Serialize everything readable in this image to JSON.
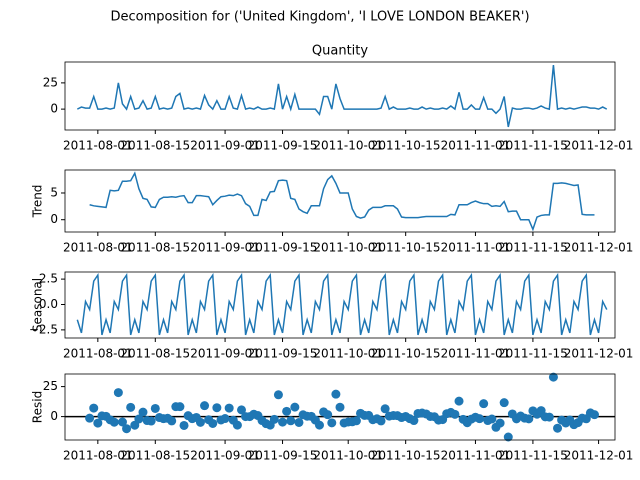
{
  "chart_data": {
    "type": "line",
    "title": "Decomposition for ('United Kingdom', 'I LOVE LONDON BEAKER')",
    "x": [
      "2011-07-27",
      "2011-07-28",
      "2011-07-29",
      "2011-07-30",
      "2011-07-31",
      "2011-08-01",
      "2011-08-02",
      "2011-08-03",
      "2011-08-04",
      "2011-08-05",
      "2011-08-06",
      "2011-08-07",
      "2011-08-08",
      "2011-08-09",
      "2011-08-10",
      "2011-08-11",
      "2011-08-12",
      "2011-08-13",
      "2011-08-14",
      "2011-08-15",
      "2011-08-16",
      "2011-08-17",
      "2011-08-18",
      "2011-08-19",
      "2011-08-20",
      "2011-08-21",
      "2011-08-22",
      "2011-08-23",
      "2011-08-24",
      "2011-08-25",
      "2011-08-26",
      "2011-08-27",
      "2011-08-28",
      "2011-08-29",
      "2011-08-30",
      "2011-08-31",
      "2011-09-01",
      "2011-09-02",
      "2011-09-03",
      "2011-09-04",
      "2011-09-05",
      "2011-09-06",
      "2011-09-07",
      "2011-09-08",
      "2011-09-09",
      "2011-09-10",
      "2011-09-11",
      "2011-09-12",
      "2011-09-13",
      "2011-09-14",
      "2011-09-15",
      "2011-09-16",
      "2011-09-17",
      "2011-09-18",
      "2011-09-19",
      "2011-09-20",
      "2011-09-21",
      "2011-09-22",
      "2011-09-23",
      "2011-09-24",
      "2011-09-25",
      "2011-09-26",
      "2011-09-27",
      "2011-09-28",
      "2011-09-29",
      "2011-09-30",
      "2011-10-01",
      "2011-10-02",
      "2011-10-03",
      "2011-10-04",
      "2011-10-05",
      "2011-10-06",
      "2011-10-07",
      "2011-10-08",
      "2011-10-09",
      "2011-10-10",
      "2011-10-11",
      "2011-10-12",
      "2011-10-13",
      "2011-10-14",
      "2011-10-15",
      "2011-10-16",
      "2011-10-17",
      "2011-10-18",
      "2011-10-19",
      "2011-10-20",
      "2011-10-21",
      "2011-10-22",
      "2011-10-23",
      "2011-10-24",
      "2011-10-25",
      "2011-10-26",
      "2011-10-27",
      "2011-10-28",
      "2011-10-29",
      "2011-10-30",
      "2011-10-31",
      "2011-11-01",
      "2011-11-02",
      "2011-11-03",
      "2011-11-04",
      "2011-11-05",
      "2011-11-06",
      "2011-11-07",
      "2011-11-08",
      "2011-11-09",
      "2011-11-10",
      "2011-11-11",
      "2011-11-12",
      "2011-11-13",
      "2011-11-14",
      "2011-11-15",
      "2011-11-16",
      "2011-11-17",
      "2011-11-18",
      "2011-11-19",
      "2011-11-20",
      "2011-11-21",
      "2011-11-22",
      "2011-11-23",
      "2011-11-24",
      "2011-11-25",
      "2011-11-26",
      "2011-11-27",
      "2011-11-28",
      "2011-11-29",
      "2011-11-30",
      "2011-12-01",
      "2011-12-02",
      "2011-12-03"
    ],
    "xlim": [
      "2011-07-24",
      "2011-12-05"
    ],
    "xticks": [
      "2011-08-01",
      "2011-08-15",
      "2011-09-01",
      "2011-09-15",
      "2011-10-01",
      "2011-10-15",
      "2011-11-01",
      "2011-11-15",
      "2011-12-01"
    ],
    "panels": [
      {
        "type": "line",
        "title": "Quantity",
        "color": "#1f77b4",
        "ylim": [
          -19.9,
          44.9
        ],
        "yticks": [
          0,
          25
        ],
        "values": [
          0,
          2,
          1,
          1,
          12,
          0,
          0,
          1,
          0,
          1,
          25,
          5,
          0,
          12,
          0,
          1,
          8,
          0,
          1,
          12,
          0,
          1,
          0,
          1,
          12,
          15,
          0,
          1,
          0,
          1,
          0,
          13,
          4,
          0,
          8,
          0,
          0,
          12,
          1,
          0,
          13,
          0,
          1,
          0,
          2,
          0,
          0,
          1,
          0,
          24,
          0,
          12,
          0,
          14,
          0,
          0,
          0,
          0,
          0,
          -5,
          12,
          12,
          0,
          24,
          10,
          0,
          0,
          0,
          0,
          0,
          0,
          0,
          0,
          0,
          1,
          12,
          0,
          2,
          0,
          0,
          0,
          1,
          0,
          0,
          2,
          0,
          1,
          0,
          0,
          1,
          0,
          3,
          0,
          16,
          0,
          0,
          4,
          0,
          0,
          11,
          0,
          0,
          -4,
          0,
          12,
          -17,
          1,
          0,
          0,
          1,
          1,
          0,
          1,
          3,
          1,
          0,
          42,
          0,
          1,
          0,
          1,
          0,
          1,
          2,
          2,
          1,
          1,
          0,
          2,
          0
        ]
      },
      {
        "type": "line",
        "ylabel": "Trend",
        "color": "#1f77b4",
        "ylim": [
          -2.3,
          9.3
        ],
        "yticks": [
          0,
          5
        ],
        "values": [
          null,
          null,
          null,
          2.8,
          2.6,
          2.5,
          2.4,
          2.3,
          5.5,
          5.4,
          5.5,
          7.2,
          7.2,
          7.3,
          8.7,
          5.8,
          4.0,
          3.8,
          2.4,
          2.3,
          3.8,
          4.2,
          4.2,
          4.3,
          4.2,
          4.4,
          4.5,
          3.2,
          3.2,
          4.5,
          4.5,
          4.4,
          4.3,
          2.8,
          3.6,
          4.3,
          4.4,
          4.6,
          4.5,
          4.8,
          4.5,
          3.0,
          2.5,
          0.8,
          0.8,
          3.8,
          3.6,
          5.2,
          5.3,
          7.3,
          7.4,
          7.3,
          4.0,
          3.8,
          2.0,
          1.5,
          1.2,
          2.6,
          2.6,
          2.6,
          5.8,
          7.5,
          8.2,
          6.8,
          5.0,
          5.0,
          5.0,
          2.0,
          0.6,
          0.3,
          0.5,
          1.8,
          2.3,
          2.3,
          2.3,
          2.6,
          2.6,
          2.6,
          2.0,
          0.5,
          0.4,
          0.4,
          0.4,
          0.4,
          0.5,
          0.6,
          0.6,
          0.6,
          0.6,
          0.6,
          0.6,
          1.0,
          0.9,
          2.8,
          2.8,
          2.8,
          3.2,
          3.5,
          3.2,
          3.0,
          3.0,
          2.5,
          2.6,
          2.5,
          3.4,
          1.5,
          1.6,
          1.6,
          0.0,
          0.0,
          0.0,
          -1.8,
          0.5,
          0.8,
          0.9,
          0.9,
          6.8,
          6.8,
          6.9,
          6.8,
          6.6,
          6.4,
          6.5,
          1.0,
          0.9,
          0.9,
          0.9,
          null,
          null,
          null
        ]
      },
      {
        "type": "line",
        "ylabel": "Seasonal",
        "color": "#1f77b4",
        "ylim": [
          -3.3,
          3.2
        ],
        "yticks": [
          {
            "value": -2.5,
            "label": "−2.5"
          },
          {
            "value": 0,
            "label": "0.0"
          },
          {
            "value": 2.5,
            "label": "2.5"
          }
        ],
        "values": [
          -1.5,
          -2.8,
          0.3,
          -0.5,
          2.3,
          2.9,
          -3.0,
          -1.5,
          -2.8,
          0.3,
          -0.5,
          2.3,
          2.9,
          -3.0,
          -1.5,
          -2.8,
          0.3,
          -0.5,
          2.3,
          2.9,
          -3.0,
          -1.5,
          -2.8,
          0.3,
          -0.5,
          2.3,
          2.9,
          -3.0,
          -1.5,
          -2.8,
          0.3,
          -0.5,
          2.3,
          2.9,
          -3.0,
          -1.5,
          -2.8,
          0.3,
          -0.5,
          2.3,
          2.9,
          -3.0,
          -1.5,
          -2.8,
          0.3,
          -0.5,
          2.3,
          2.9,
          -3.0,
          -1.5,
          -2.8,
          0.3,
          -0.5,
          2.3,
          2.9,
          -3.0,
          -1.5,
          -2.8,
          0.3,
          -0.5,
          2.3,
          2.9,
          -3.0,
          -1.5,
          -2.8,
          0.3,
          -0.5,
          2.3,
          2.9,
          -3.0,
          -1.5,
          -2.8,
          0.3,
          -0.5,
          2.3,
          2.9,
          -3.0,
          -1.5,
          -2.8,
          0.3,
          -0.5,
          2.3,
          2.9,
          -3.0,
          -1.5,
          -2.8,
          0.3,
          -0.5,
          2.3,
          2.9,
          -3.0,
          -1.5,
          -2.8,
          0.3,
          -0.5,
          2.3,
          2.9,
          -3.0,
          -1.5,
          -2.8,
          0.3,
          -0.5,
          2.3,
          2.9,
          -3.0,
          -1.5,
          -2.8,
          0.3,
          -0.5,
          2.3,
          2.9,
          -3.0,
          -1.5,
          -2.8,
          0.3,
          -0.5,
          2.3,
          2.9,
          -3.0,
          -1.5,
          -2.8,
          0.3,
          -0.5,
          2.3,
          2.9,
          -3.0,
          -1.5,
          -2.8,
          0.3,
          -0.5
        ]
      },
      {
        "type": "scatter",
        "ylabel": "Resid",
        "color": "#1f77b4",
        "zero_line": true,
        "ylim": [
          -19.5,
          35.5
        ],
        "yticks": [
          0,
          25
        ],
        "values": [
          null,
          null,
          null,
          -1.3,
          7.1,
          -5.4,
          0.6,
          0.2,
          -2.7,
          -4.7,
          20.0,
          -4.5,
          -10.1,
          7.7,
          -7.2,
          -2.0,
          3.7,
          -3.3,
          -3.7,
          6.8,
          -0.8,
          -1.7,
          -1.4,
          -3.6,
          8.3,
          8.3,
          -7.4,
          0.8,
          -1.7,
          -0.7,
          -4.8,
          9.1,
          -2.6,
          -5.7,
          7.4,
          -2.8,
          -1.6,
          7.1,
          -3.0,
          -7.1,
          5.6,
          0,
          0,
          2.0,
          0.9,
          -3.3,
          -5.9,
          -7.1,
          -2.3,
          18.2,
          -4.6,
          4.4,
          -3.5,
          7.9,
          -4.9,
          1.5,
          0.3,
          0.2,
          -2.9,
          -7.1,
          3.9,
          1.6,
          -5.2,
          18.7,
          7.8,
          -5.3,
          -4.5,
          -4.3,
          -3.5,
          2.7,
          1.0,
          1.0,
          -2.6,
          -1.8,
          -3.6,
          6.5,
          0.4,
          0.9,
          0.8,
          -0.8,
          0.1,
          -1.7,
          -3.3,
          2.6,
          3.0,
          2.2,
          0.1,
          -0.1,
          -2.9,
          -2.5,
          2.4,
          3.5,
          1.9,
          12.9,
          -2.3,
          -5.1,
          -2.1,
          -0.5,
          -1.7,
          10.8,
          -3.3,
          -2.0,
          -8.9,
          -5.4,
          11.6,
          -17.0,
          2.2,
          -1.9,
          0.5,
          -1.3,
          -1.9,
          4.8,
          2.0,
          5.0,
          -0.2,
          -0.4,
          32.9,
          -9.7,
          -2.9,
          -5.3,
          -2.8,
          -6.7,
          -5.0,
          -1.3,
          -1.8,
          3.1,
          1.6,
          null,
          null,
          null
        ]
      }
    ]
  }
}
